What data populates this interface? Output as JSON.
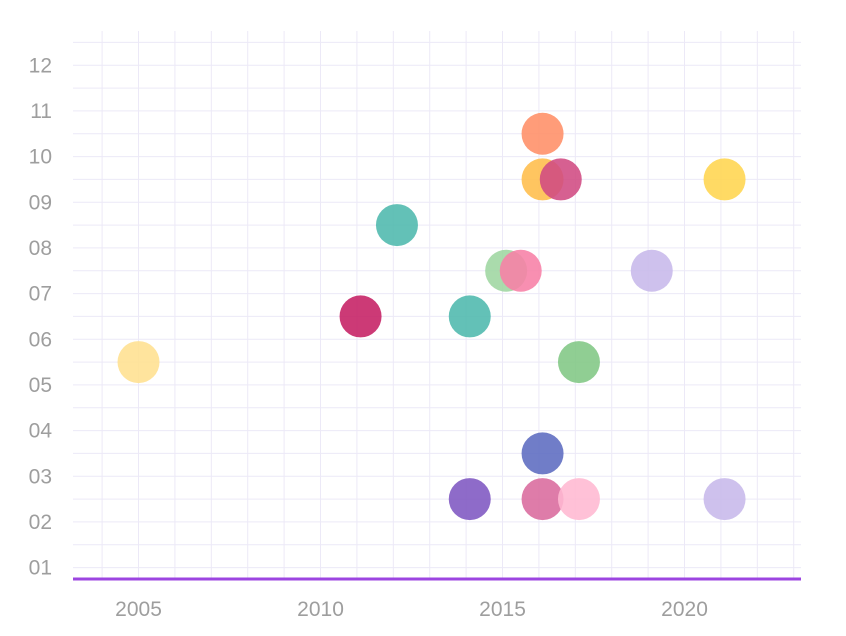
{
  "chart_data": {
    "type": "scatter",
    "title": "",
    "xlabel": "",
    "ylabel": "",
    "xlim": [
      2003.2,
      2023.2
    ],
    "ylim": [
      0.75,
      12.75
    ],
    "x_ticks": [
      2005,
      2010,
      2015,
      2020
    ],
    "x_tick_labels": [
      "2005",
      "2010",
      "2015",
      "2020"
    ],
    "y_ticks": [
      1,
      2,
      3,
      4,
      5,
      6,
      7,
      8,
      9,
      10,
      11,
      12
    ],
    "y_tick_labels": [
      "01",
      "02",
      "03",
      "04",
      "05",
      "06",
      "07",
      "08",
      "09",
      "10",
      "11",
      "12"
    ],
    "grid": true,
    "axis_color": "#9c45e0",
    "grid_color": "#ece9f7",
    "points": [
      {
        "x": 2005.0,
        "y": 5.5,
        "color": "#ffe08f"
      },
      {
        "x": 2011.1,
        "y": 6.5,
        "color": "#c51f63"
      },
      {
        "x": 2012.1,
        "y": 8.5,
        "color": "#4db8ad"
      },
      {
        "x": 2014.1,
        "y": 6.5,
        "color": "#4db8ad"
      },
      {
        "x": 2014.1,
        "y": 2.5,
        "color": "#7e57c2"
      },
      {
        "x": 2015.1,
        "y": 7.5,
        "color": "#9ed6a1"
      },
      {
        "x": 2015.5,
        "y": 7.5,
        "color": "#f77fa6"
      },
      {
        "x": 2016.1,
        "y": 10.5,
        "color": "#ff8e66"
      },
      {
        "x": 2016.1,
        "y": 9.5,
        "color": "#ffbd4a"
      },
      {
        "x": 2016.6,
        "y": 9.5,
        "color": "#d04a82"
      },
      {
        "x": 2016.1,
        "y": 3.5,
        "color": "#5c6bc0"
      },
      {
        "x": 2016.1,
        "y": 2.5,
        "color": "#d96a9d"
      },
      {
        "x": 2017.1,
        "y": 5.5,
        "color": "#81c784"
      },
      {
        "x": 2017.1,
        "y": 2.5,
        "color": "#ffb8d1"
      },
      {
        "x": 2019.1,
        "y": 7.5,
        "color": "#c7b8ea"
      },
      {
        "x": 2021.1,
        "y": 9.5,
        "color": "#ffd54f"
      },
      {
        "x": 2021.1,
        "y": 2.5,
        "color": "#c7b8ea"
      }
    ]
  }
}
